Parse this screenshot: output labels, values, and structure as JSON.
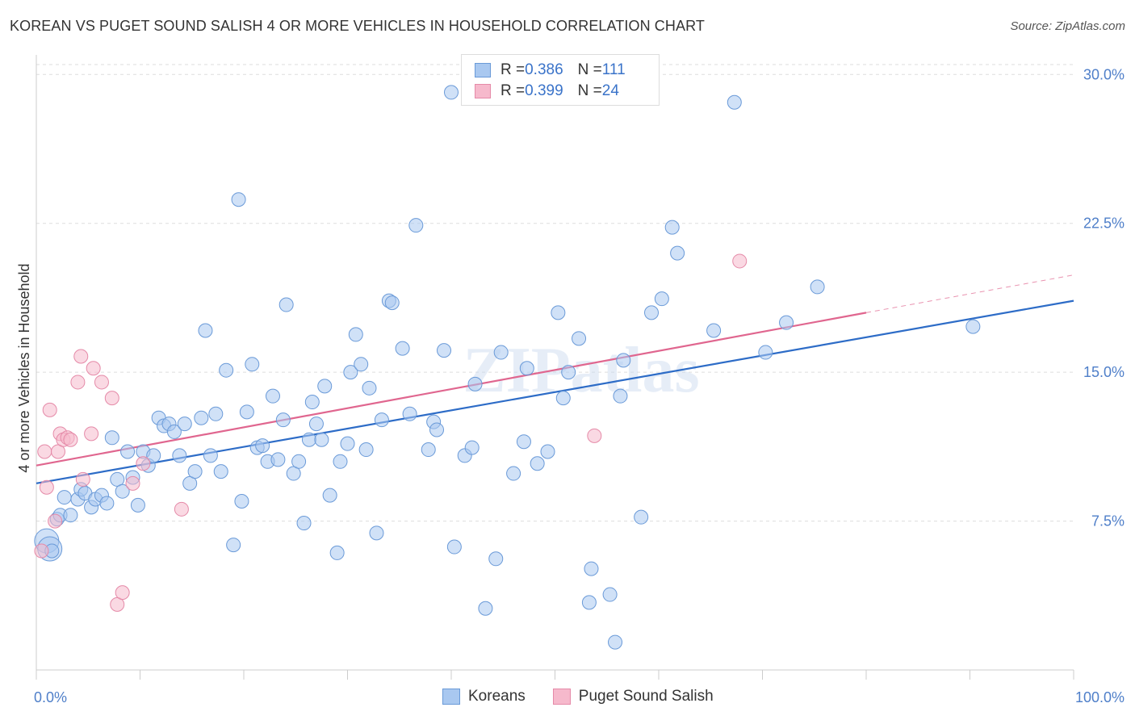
{
  "title": "KOREAN VS PUGET SOUND SALISH 4 OR MORE VEHICLES IN HOUSEHOLD CORRELATION CHART",
  "source": "Source: ZipAtlas.com",
  "watermark": "ZIPatlas",
  "legend": {
    "rows": [
      {
        "r_label": "R = ",
        "r_value": "0.386",
        "n_label": "N = ",
        "n_value": "111"
      },
      {
        "r_label": "R = ",
        "r_value": "0.399",
        "n_label": "N = ",
        "n_value": "24"
      }
    ]
  },
  "bottom_legend": [
    "Koreans",
    "Puget Sound Salish"
  ],
  "colors": {
    "koreans_fill": "#a9c8f0",
    "koreans_stroke": "#6a9ad8",
    "koreans_line": "#2d6cc7",
    "salish_fill": "#f6b9cc",
    "salish_stroke": "#e58aa8",
    "salish_line": "#e0668f",
    "grid": "#dddddd",
    "tick_label": "#4f7fc9"
  },
  "chart_data": {
    "type": "scatter",
    "xlabel": "",
    "ylabel": "4 or more Vehicles in Household",
    "xlim": [
      0,
      100
    ],
    "ylim": [
      0,
      30.5
    ],
    "x_tick_labels": [
      "0.0%",
      "100.0%"
    ],
    "y_ticks": [
      7.5,
      15.0,
      22.5,
      30.0
    ],
    "y_tick_labels": [
      "7.5%",
      "15.0%",
      "22.5%",
      "30.0%"
    ],
    "grid": true,
    "legend_position": "top-center",
    "series": [
      {
        "name": "Koreans",
        "trend": {
          "x": [
            0,
            100
          ],
          "y": [
            9.4,
            18.6
          ]
        },
        "points": [
          [
            1,
            6.5
          ],
          [
            1.3,
            6.1
          ],
          [
            1.5,
            6.0
          ],
          [
            2,
            7.6
          ],
          [
            2.3,
            7.8
          ],
          [
            2.7,
            8.7
          ],
          [
            3.3,
            7.8
          ],
          [
            4,
            8.6
          ],
          [
            4.3,
            9.1
          ],
          [
            4.7,
            8.9
          ],
          [
            5.3,
            8.2
          ],
          [
            5.7,
            8.6
          ],
          [
            6.3,
            8.8
          ],
          [
            6.8,
            8.4
          ],
          [
            7.3,
            11.7
          ],
          [
            7.8,
            9.6
          ],
          [
            8.3,
            9.0
          ],
          [
            8.8,
            11.0
          ],
          [
            9.3,
            9.7
          ],
          [
            9.8,
            8.3
          ],
          [
            10.3,
            11.0
          ],
          [
            10.8,
            10.3
          ],
          [
            11.3,
            10.8
          ],
          [
            11.8,
            12.7
          ],
          [
            12.3,
            12.3
          ],
          [
            12.8,
            12.4
          ],
          [
            13.3,
            12.0
          ],
          [
            13.8,
            10.8
          ],
          [
            14.3,
            12.4
          ],
          [
            14.8,
            9.4
          ],
          [
            15.3,
            10.0
          ],
          [
            15.9,
            12.7
          ],
          [
            16.3,
            17.1
          ],
          [
            16.8,
            10.8
          ],
          [
            17.3,
            12.9
          ],
          [
            17.8,
            10.0
          ],
          [
            18.3,
            15.1
          ],
          [
            19.0,
            6.3
          ],
          [
            19.5,
            23.7
          ],
          [
            19.8,
            8.5
          ],
          [
            20.3,
            13.0
          ],
          [
            20.8,
            15.4
          ],
          [
            21.3,
            11.2
          ],
          [
            21.8,
            11.3
          ],
          [
            22.3,
            10.5
          ],
          [
            22.8,
            13.8
          ],
          [
            23.3,
            10.6
          ],
          [
            23.8,
            12.6
          ],
          [
            24.1,
            18.4
          ],
          [
            24.8,
            9.9
          ],
          [
            25.3,
            10.5
          ],
          [
            25.8,
            7.4
          ],
          [
            26.3,
            11.6
          ],
          [
            26.6,
            13.5
          ],
          [
            27.0,
            12.4
          ],
          [
            27.5,
            11.6
          ],
          [
            27.8,
            14.3
          ],
          [
            28.3,
            8.8
          ],
          [
            29.0,
            5.9
          ],
          [
            29.3,
            10.5
          ],
          [
            30.0,
            11.4
          ],
          [
            30.3,
            15.0
          ],
          [
            30.8,
            16.9
          ],
          [
            31.3,
            15.4
          ],
          [
            31.8,
            11.1
          ],
          [
            32.1,
            14.2
          ],
          [
            32.8,
            6.9
          ],
          [
            33.3,
            12.6
          ],
          [
            34.0,
            18.6
          ],
          [
            34.3,
            18.5
          ],
          [
            35.3,
            16.2
          ],
          [
            36.0,
            12.9
          ],
          [
            36.6,
            22.4
          ],
          [
            37.8,
            11.1
          ],
          [
            38.3,
            12.5
          ],
          [
            38.6,
            12.1
          ],
          [
            39.3,
            16.1
          ],
          [
            40.0,
            29.1
          ],
          [
            40.3,
            6.2
          ],
          [
            41.3,
            10.8
          ],
          [
            42.0,
            11.2
          ],
          [
            42.3,
            14.4
          ],
          [
            43.3,
            3.1
          ],
          [
            44.3,
            5.6
          ],
          [
            44.8,
            16.0
          ],
          [
            46.0,
            9.9
          ],
          [
            47.0,
            11.5
          ],
          [
            47.3,
            15.2
          ],
          [
            48.3,
            10.4
          ],
          [
            49.3,
            11.0
          ],
          [
            50.3,
            18.0
          ],
          [
            50.8,
            13.7
          ],
          [
            51.3,
            15.0
          ],
          [
            52.3,
            16.7
          ],
          [
            53.3,
            3.4
          ],
          [
            53.5,
            5.1
          ],
          [
            55.3,
            3.8
          ],
          [
            55.8,
            1.4
          ],
          [
            56.3,
            13.8
          ],
          [
            56.6,
            15.6
          ],
          [
            58.3,
            7.7
          ],
          [
            59.3,
            18.0
          ],
          [
            60.3,
            18.7
          ],
          [
            61.3,
            22.3
          ],
          [
            61.8,
            21.0
          ],
          [
            65.3,
            17.1
          ],
          [
            67.3,
            28.6
          ],
          [
            70.3,
            16.0
          ],
          [
            72.3,
            17.5
          ],
          [
            75.3,
            19.3
          ],
          [
            90.3,
            17.3
          ]
        ]
      },
      {
        "name": "Puget Sound Salish",
        "trend": {
          "x": [
            0,
            80
          ],
          "y": [
            10.3,
            18.0
          ]
        },
        "trend_dashed": {
          "x": [
            80,
            100
          ],
          "y": [
            18.0,
            19.9
          ]
        },
        "points": [
          [
            0.5,
            6.0
          ],
          [
            0.8,
            11.0
          ],
          [
            1.0,
            9.2
          ],
          [
            1.3,
            13.1
          ],
          [
            1.8,
            7.5
          ],
          [
            2.1,
            11.0
          ],
          [
            2.3,
            11.9
          ],
          [
            2.6,
            11.6
          ],
          [
            3.0,
            11.7
          ],
          [
            3.3,
            11.6
          ],
          [
            4.0,
            14.5
          ],
          [
            4.3,
            15.8
          ],
          [
            4.5,
            9.6
          ],
          [
            5.3,
            11.9
          ],
          [
            5.5,
            15.2
          ],
          [
            6.3,
            14.5
          ],
          [
            7.3,
            13.7
          ],
          [
            7.8,
            3.3
          ],
          [
            8.3,
            3.9
          ],
          [
            9.3,
            9.4
          ],
          [
            10.3,
            10.4
          ],
          [
            14.0,
            8.1
          ],
          [
            53.8,
            11.8
          ],
          [
            67.8,
            20.6
          ]
        ]
      }
    ]
  }
}
